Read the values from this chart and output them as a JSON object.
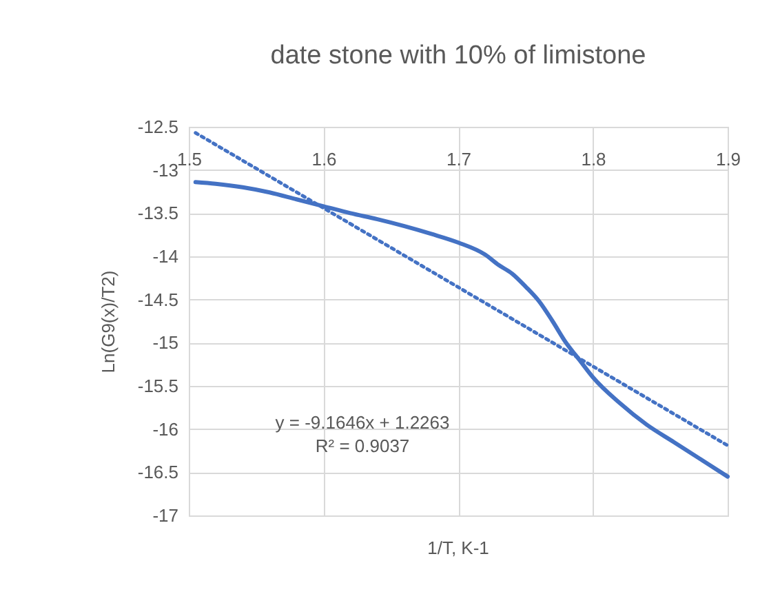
{
  "chart_data": {
    "type": "line",
    "title": "date stone with 10% of limistone",
    "xlabel": "1/T, K-1",
    "ylabel": "Ln(G9(x)/T2)",
    "xlim": [
      1.5,
      1.9
    ],
    "xticks": [
      1.5,
      1.6,
      1.7,
      1.8,
      1.9
    ],
    "ylim": [
      -17,
      -12.5
    ],
    "yticks": [
      -17,
      -16.5,
      -16,
      -15.5,
      -15,
      -14.5,
      -14,
      -13.5,
      -13,
      -12.5
    ],
    "grid": true,
    "marker": "none",
    "series": [
      {
        "color": "#4472c4",
        "line_style": "solid",
        "x": [
          1.505,
          1.52,
          1.54,
          1.56,
          1.58,
          1.6,
          1.62,
          1.64,
          1.66,
          1.68,
          1.7,
          1.72,
          1.73,
          1.74,
          1.75,
          1.76,
          1.77,
          1.78,
          1.79,
          1.8,
          1.82,
          1.84,
          1.86,
          1.88,
          1.9
        ],
        "values": [
          -13.14,
          -13.16,
          -13.2,
          -13.26,
          -13.34,
          -13.42,
          -13.5,
          -13.57,
          -13.65,
          -13.74,
          -13.84,
          -13.98,
          -14.1,
          -14.2,
          -14.35,
          -14.52,
          -14.75,
          -15.0,
          -15.2,
          -15.4,
          -15.7,
          -15.95,
          -16.15,
          -16.35,
          -16.55
        ]
      },
      {
        "color": "#4472c4",
        "line_style": "dotted",
        "x": [
          1.505,
          1.9
        ],
        "values": [
          -12.57,
          -16.19
        ]
      }
    ],
    "annotations": [
      "y = -9.1646x + 1.2263",
      "R² = 0.9037"
    ]
  }
}
